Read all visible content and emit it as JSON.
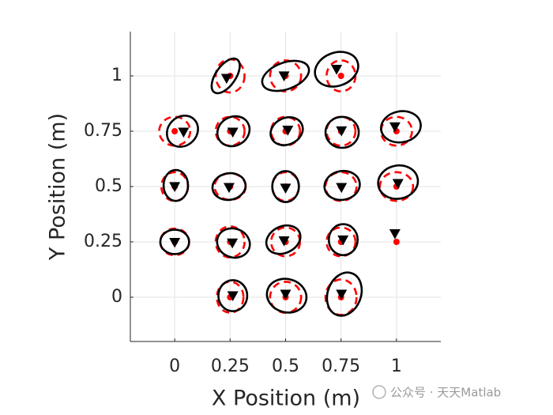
{
  "chart_data": {
    "type": "scatter",
    "xlabel": "X Position (m)",
    "ylabel": "Y Position (m)",
    "xlim": [
      -0.2,
      1.2
    ],
    "ylim": [
      -0.2,
      1.2
    ],
    "xticks": [
      0,
      0.25,
      0.5,
      0.75,
      1
    ],
    "yticks": [
      0,
      0.25,
      0.5,
      0.75,
      1
    ],
    "grid": true,
    "ellipses": [
      {
        "color": "#ff0000",
        "dashed": true,
        "cx": [
          0.25,
          0.5,
          0.75,
          0,
          0.25,
          0.5,
          0.75,
          1,
          0,
          0.25,
          0.5,
          0.75,
          1,
          0,
          0.25,
          0.5,
          0.75,
          0.25,
          0.5,
          0.75
        ],
        "cy": [
          1,
          1,
          1,
          0.75,
          0.75,
          0.75,
          0.75,
          0.75,
          0.5,
          0.5,
          0.5,
          0.5,
          0.5,
          0.25,
          0.25,
          0.25,
          0.25,
          0,
          0,
          0
        ],
        "rx": [
          0.065,
          0.07,
          0.065,
          0.07,
          0.065,
          0.065,
          0.065,
          0.07,
          0.06,
          0.07,
          0.06,
          0.07,
          0.075,
          0.065,
          0.065,
          0.065,
          0.065,
          0.06,
          0.07,
          0.07
        ],
        "ry": [
          0.075,
          0.07,
          0.07,
          0.065,
          0.065,
          0.065,
          0.065,
          0.065,
          0.065,
          0.06,
          0.065,
          0.065,
          0.065,
          0.06,
          0.07,
          0.065,
          0.065,
          0.07,
          0.07,
          0.08
        ],
        "angle": [
          0,
          0,
          0,
          0,
          0,
          0,
          0,
          0,
          0,
          0,
          0,
          0,
          0,
          0,
          0,
          0,
          0,
          0,
          0,
          0
        ]
      },
      {
        "color": "#000000",
        "dashed": false,
        "cx": [
          0.23,
          0.5,
          0.73,
          0.035,
          0.265,
          0.505,
          0.755,
          1.02,
          0.005,
          0.245,
          0.5,
          0.755,
          1.007,
          0,
          0.265,
          0.49,
          0.76,
          0.262,
          0.505,
          0.765
        ],
        "cy": [
          1,
          1,
          1.03,
          0.75,
          0.75,
          0.75,
          0.745,
          0.77,
          0.505,
          0.5,
          0.5,
          0.505,
          0.52,
          0.25,
          0.245,
          0.26,
          0.26,
          0.007,
          0.007,
          0.014
        ],
        "rx": [
          0.09,
          0.11,
          0.1,
          0.075,
          0.075,
          0.075,
          0.075,
          0.09,
          0.055,
          0.075,
          0.06,
          0.08,
          0.09,
          0.065,
          0.075,
          0.08,
          0.065,
          0.065,
          0.09,
          0.075
        ],
        "ry": [
          0.045,
          0.06,
          0.075,
          0.065,
          0.065,
          0.06,
          0.07,
          0.07,
          0.07,
          0.06,
          0.07,
          0.065,
          0.075,
          0.055,
          0.065,
          0.06,
          0.07,
          0.07,
          0.075,
          0.1
        ],
        "angle": [
          55,
          20,
          20,
          45,
          30,
          25,
          0,
          10,
          0,
          10,
          0,
          10,
          10,
          0,
          -20,
          25,
          0,
          0,
          -15,
          -20
        ]
      }
    ],
    "series": [
      {
        "color": "#ff0000",
        "marker": "circle",
        "x": [
          0.25,
          0.5,
          0.75,
          0,
          0.25,
          0.5,
          0.75,
          1,
          0,
          0.25,
          0.5,
          0.75,
          1,
          0,
          0.25,
          0.5,
          0.75,
          1,
          0.25,
          0.5,
          0.75
        ],
        "y": [
          1,
          1,
          1,
          0.75,
          0.75,
          0.75,
          0.75,
          0.75,
          0.5,
          0.5,
          0.5,
          0.5,
          0.5,
          0.25,
          0.25,
          0.25,
          0.25,
          0.25,
          0,
          0,
          0
        ]
      },
      {
        "color": "#000000",
        "marker": "triangle-down",
        "x": [
          0.234,
          0.493,
          0.73,
          0.04,
          0.262,
          0.51,
          0.752,
          0.993,
          0,
          0.245,
          0.5,
          0.752,
          1.007,
          0,
          0.26,
          0.493,
          0.759,
          0.993,
          0.262,
          0.5,
          0.752
        ],
        "y": [
          0.989,
          1,
          1.03,
          0.746,
          0.746,
          0.755,
          0.752,
          0.77,
          0.5,
          0.496,
          0.493,
          0.496,
          0.514,
          0.248,
          0.245,
          0.255,
          0.259,
          0.287,
          0.007,
          0.014,
          0.014
        ]
      }
    ]
  },
  "watermark": "公众号 · 天天Matlab"
}
